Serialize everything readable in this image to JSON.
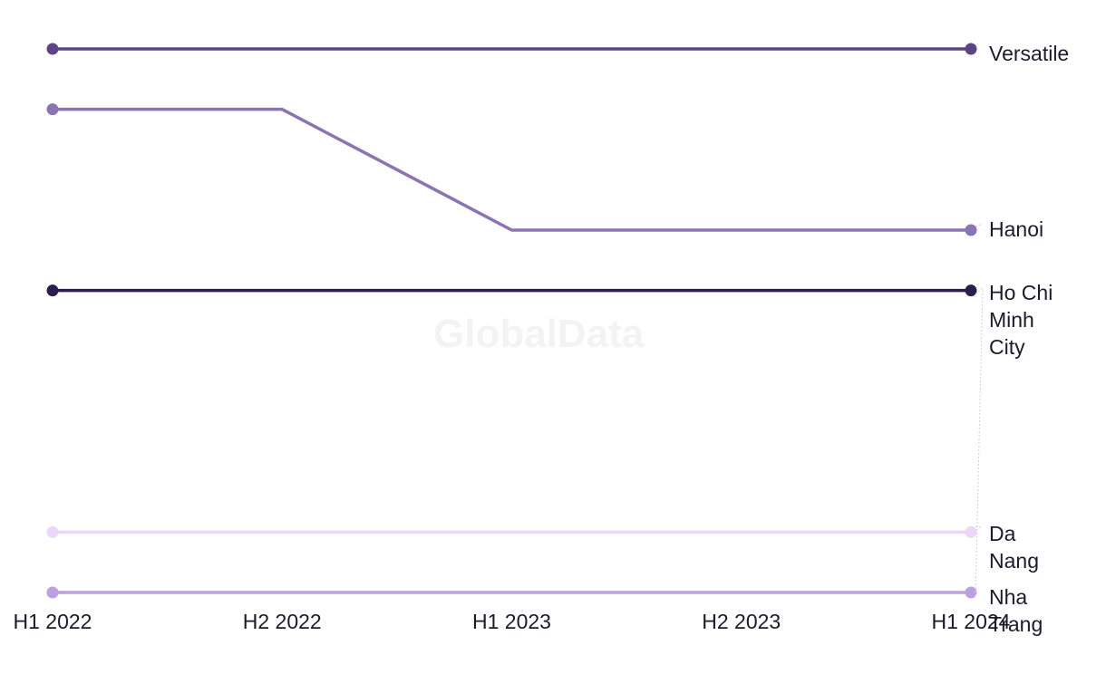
{
  "watermark": "GlobalData",
  "chart_data": {
    "type": "line",
    "x": [
      "H1 2022",
      "H2 2022",
      "H1 2023",
      "H2 2023",
      "H1 2024"
    ],
    "series": [
      {
        "name": "Versatile",
        "label_lines": [
          "Versatile"
        ],
        "color": "#5b4587",
        "values": [
          1,
          1,
          1,
          1,
          1
        ]
      },
      {
        "name": "Hanoi",
        "label_lines": [
          "Hanoi"
        ],
        "color": "#8b74b3",
        "values": [
          2,
          2,
          4,
          4,
          4
        ]
      },
      {
        "name": "Ho Chi Minh City",
        "label_lines": [
          "Ho Chi",
          "Minh",
          "City"
        ],
        "color": "#2b1d4d",
        "values": [
          5,
          5,
          5,
          5,
          5
        ]
      },
      {
        "name": "Da Nang",
        "label_lines": [
          "Da",
          "Nang"
        ],
        "color": "#ecd6fb",
        "values": [
          9,
          9,
          9,
          9,
          9
        ]
      },
      {
        "name": "Nha Trang",
        "label_lines": [
          "Nha",
          "Trang"
        ],
        "color": "#bba1df",
        "values": [
          10,
          10,
          10,
          10,
          10
        ]
      }
    ],
    "y_reversed": true,
    "ylim": [
      1,
      10
    ],
    "grid": false,
    "legend": "direct labels at right"
  }
}
